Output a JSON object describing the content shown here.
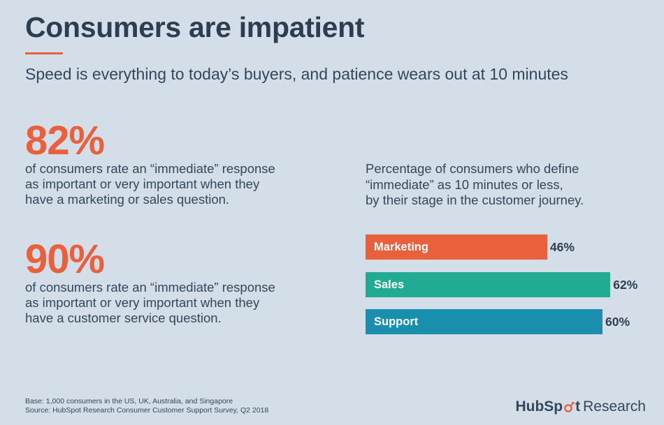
{
  "header": {
    "title": "Consumers are impatient",
    "subtitle": "Speed is everything to today’s buyers, and patience wears out at 10 minutes"
  },
  "stats": [
    {
      "value": "82%",
      "lines": [
        "of consumers rate an “immediate” response",
        "as important or very important when they",
        "have a marketing or sales question."
      ]
    },
    {
      "value": "90%",
      "lines": [
        "of consumers rate an “immediate” response",
        "as important or very important when they",
        "have a customer service question."
      ]
    }
  ],
  "chart_caption": [
    "Percentage of consumers who define",
    "“immediate” as 10 minutes or less,",
    "by their stage in the customer journey."
  ],
  "chart_data": {
    "type": "bar",
    "orientation": "horizontal",
    "categories": [
      "Marketing",
      "Sales",
      "Support"
    ],
    "values": [
      46,
      62,
      60
    ],
    "value_labels": [
      "46%",
      "62%",
      "60%"
    ],
    "colors": [
      "#e8603c",
      "#22ab93",
      "#1a8fad"
    ],
    "grid": false
  },
  "footnote": {
    "base": "Base: 1,000 consumers in the US, UK, Australia, and Singapore",
    "source": "Source: HubSpot Research Consumer Customer Support Survey, Q2 2018"
  },
  "brand": {
    "hub": "HubSp",
    "t": "t",
    "research": "Research",
    "icon": "hubspot-sprocket-icon",
    "accent": "#e8603c"
  }
}
